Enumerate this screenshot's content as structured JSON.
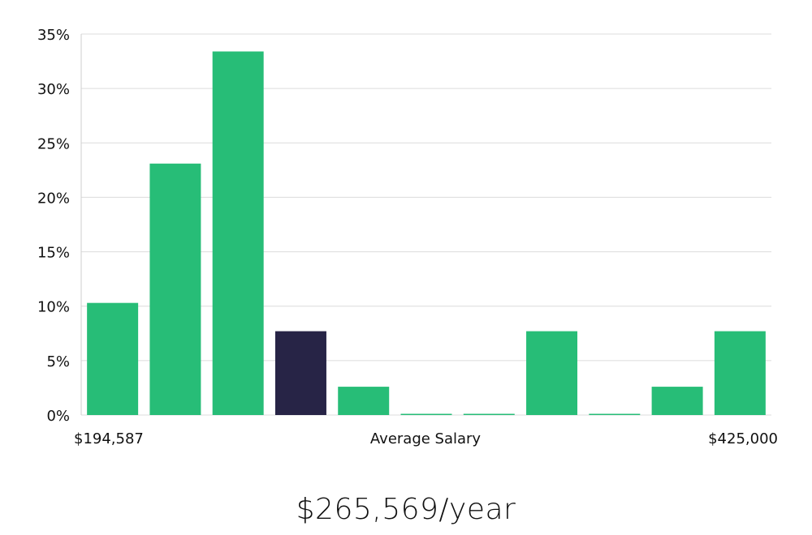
{
  "chart_data": {
    "type": "bar",
    "categories": [
      "1",
      "2",
      "3",
      "4",
      "5",
      "6",
      "7",
      "8",
      "9",
      "10",
      "11"
    ],
    "values": [
      10.3,
      23.1,
      33.4,
      7.7,
      2.6,
      0,
      0,
      7.7,
      0,
      2.6,
      7.7
    ],
    "highlight_index": 3,
    "ylim": [
      0,
      35
    ],
    "yticks": [
      0,
      5,
      10,
      15,
      20,
      25,
      30,
      35
    ],
    "ytick_suffix": "%",
    "grid": true,
    "xlabel": "Average Salary",
    "x_min_label": "$194,587",
    "x_max_label": "$425,000",
    "colors": {
      "bar": "#27bd77",
      "highlight": "#272446",
      "grid": "#dcdcdc",
      "axis": "#cfcfcf"
    }
  },
  "headline": "$265,569/year"
}
